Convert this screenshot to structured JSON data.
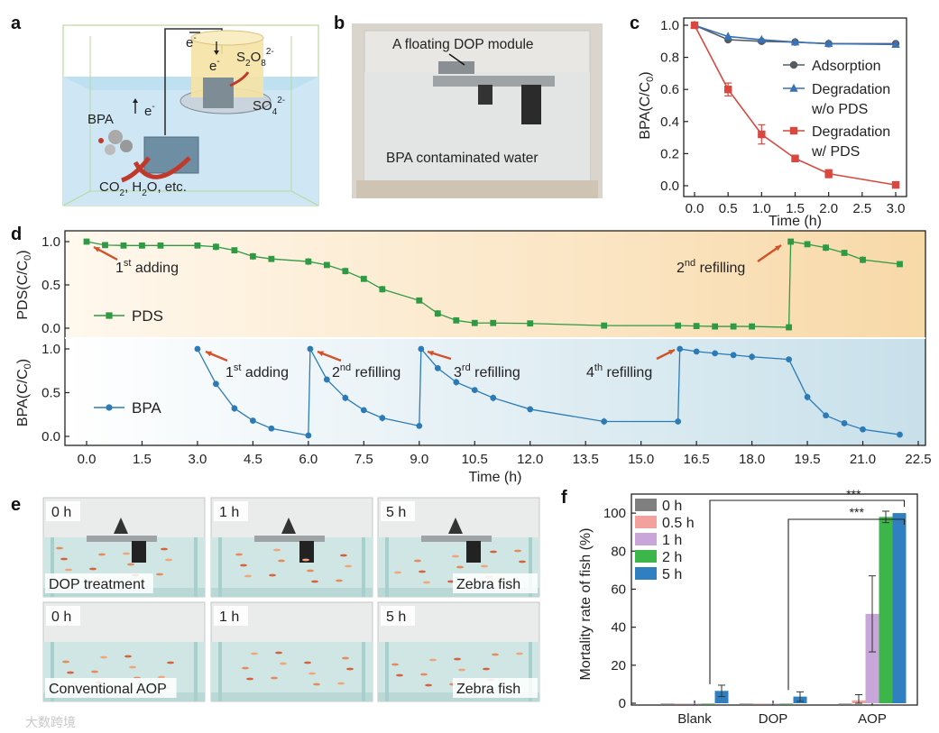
{
  "panels": {
    "a": {
      "letter": "a",
      "labels": {
        "electron1": "e",
        "electron1_sup": "-",
        "electron2": "e",
        "electron2_sup": "-",
        "electron3": "e",
        "electron3_sup": "-",
        "persulfate": "S",
        "persulfate_sub": "2",
        "persulfate_o": "O",
        "persulfate_sub2": "8",
        "persulfate_sup": "2-",
        "sulfate": "SO",
        "sulfate_sub": "4",
        "sulfate_sup": "2-",
        "bpa": "BPA",
        "products_co": "CO",
        "products_co_sub": "2",
        "products_h": ", H",
        "products_h_sub": "2",
        "products_rest": "O, etc."
      }
    },
    "b": {
      "letter": "b",
      "caption_top": "A floating DOP module",
      "caption_bottom": "BPA contaminated water"
    },
    "e": {
      "letter": "e",
      "photos": [
        {
          "time": "0 h",
          "caption": "DOP treatment"
        },
        {
          "time": "1 h",
          "caption": ""
        },
        {
          "time": "5 h",
          "caption": "Zebra fish"
        },
        {
          "time": "0 h",
          "caption": "Conventional AOP"
        },
        {
          "time": "1 h",
          "caption": ""
        },
        {
          "time": "5 h",
          "caption": "Zebra fish"
        }
      ]
    },
    "watermark": "大数跨境"
  },
  "chart_data": [
    {
      "panel": "c",
      "type": "line",
      "xlabel": "Time (h)",
      "ylabel": "BPA(C/C0)",
      "xlim": [
        0,
        3
      ],
      "ylim": [
        0,
        1
      ],
      "xticks": [
        "0.0",
        "0.5",
        "1.0",
        "1.5",
        "2.0",
        "2.5",
        "3.0"
      ],
      "yticks": [
        "0.0",
        "0.2",
        "0.4",
        "0.6",
        "0.8",
        "1.0"
      ],
      "legend_position": "right",
      "series": [
        {
          "name": "Adsorption",
          "marker": "circle",
          "color": "#555a63",
          "x": [
            0,
            0.5,
            1.0,
            1.5,
            2.0,
            3.0
          ],
          "y": [
            1.0,
            0.91,
            0.9,
            0.895,
            0.885,
            0.885
          ]
        },
        {
          "name": "Degradation w/o PDS",
          "marker": "triangle",
          "color": "#3a72b5",
          "x": [
            0,
            0.5,
            1.0,
            1.5,
            2.0,
            3.0
          ],
          "y": [
            1.0,
            0.93,
            0.91,
            0.895,
            0.885,
            0.88
          ]
        },
        {
          "name": "Degradation w/ PDS",
          "marker": "square",
          "color": "#d9473f",
          "x": [
            0,
            0.5,
            1.0,
            1.5,
            2.0,
            3.0
          ],
          "y": [
            1.0,
            0.6,
            0.32,
            0.17,
            0.075,
            0.005
          ],
          "err": [
            0,
            0.04,
            0.06,
            0.02,
            0.025,
            0
          ]
        }
      ]
    },
    {
      "panel": "d",
      "type": "line",
      "xlabel": "Time (h)",
      "xlim": [
        0,
        22.5
      ],
      "xticks": [
        "0.0",
        "1.5",
        "3.0",
        "4.5",
        "6.0",
        "7.5",
        "9.0",
        "10.5",
        "12.0",
        "13.5",
        "15.0",
        "16.5",
        "18.0",
        "19.5",
        "21.0",
        "22.5"
      ],
      "top": {
        "ylabel": "PDS(C/C0)",
        "ylim": [
          0,
          1
        ],
        "yticks": [
          "0.0",
          "0.5",
          "1.0"
        ],
        "series_name": "PDS",
        "color": "#2f9a44",
        "x": [
          0,
          0.5,
          1,
          1.5,
          2,
          3,
          3.5,
          4,
          4.5,
          5,
          6,
          6.5,
          7,
          7.5,
          8,
          9,
          9.5,
          10,
          10.5,
          11,
          12,
          14,
          16,
          16.5,
          17,
          17.5,
          18,
          19,
          19.05,
          19.5,
          20,
          20.5,
          21,
          22
        ],
        "y": [
          1.0,
          0.96,
          0.955,
          0.955,
          0.955,
          0.955,
          0.94,
          0.9,
          0.83,
          0.8,
          0.77,
          0.73,
          0.66,
          0.57,
          0.45,
          0.32,
          0.17,
          0.09,
          0.06,
          0.06,
          0.055,
          0.03,
          0.03,
          0.025,
          0.02,
          0.02,
          0.02,
          0.01,
          1.0,
          0.97,
          0.93,
          0.87,
          0.79,
          0.74
        ],
        "annotations": [
          {
            "text": "1",
            "sup": "st",
            "rest": " adding"
          },
          {
            "text": "2",
            "sup": "nd",
            "rest": " refilling"
          }
        ]
      },
      "bottom": {
        "ylabel": "BPA(C/C0)",
        "ylim": [
          0,
          1
        ],
        "yticks": [
          "0.0",
          "0.5",
          "1.0"
        ],
        "series_name": "BPA",
        "color": "#2c7bb6",
        "x": [
          3,
          3.5,
          4,
          4.5,
          5,
          6,
          6.05,
          6.5,
          7,
          7.5,
          8,
          9,
          9.05,
          9.5,
          10,
          10.5,
          11,
          12,
          14,
          16,
          16.05,
          16.5,
          17,
          17.5,
          18,
          19,
          19.5,
          20,
          20.5,
          21,
          22
        ],
        "y": [
          1.0,
          0.6,
          0.32,
          0.18,
          0.09,
          0.01,
          1.0,
          0.65,
          0.44,
          0.3,
          0.21,
          0.12,
          1.0,
          0.78,
          0.62,
          0.53,
          0.44,
          0.31,
          0.17,
          0.17,
          1.0,
          0.97,
          0.95,
          0.93,
          0.91,
          0.88,
          0.45,
          0.24,
          0.15,
          0.08,
          0.02
        ],
        "annotations": [
          {
            "text": "1",
            "sup": "st",
            "rest": " adding"
          },
          {
            "text": "2",
            "sup": "nd",
            "rest": " refilling"
          },
          {
            "text": "3",
            "sup": "rd",
            "rest": " refilling"
          },
          {
            "text": "4",
            "sup": "th",
            "rest": " refilling"
          }
        ]
      }
    },
    {
      "panel": "f",
      "type": "bar",
      "ylabel": "Mortality rate of fish (%)",
      "ylim": [
        0,
        110
      ],
      "yticks": [
        "0",
        "20",
        "40",
        "60",
        "80",
        "100"
      ],
      "categories": [
        "Blank",
        "DOP",
        "AOP"
      ],
      "legend_position": "top-left",
      "significance": [
        "***",
        "***"
      ],
      "series": [
        {
          "name": "0 h",
          "color": "#7f7f7f",
          "values": [
            0,
            0,
            0
          ],
          "err": [
            0,
            0,
            0
          ]
        },
        {
          "name": "0.5 h",
          "color": "#f2a19d",
          "values": [
            0,
            0,
            1.5
          ],
          "err": [
            0,
            0,
            3
          ]
        },
        {
          "name": "1 h",
          "color": "#c9a6d9",
          "values": [
            0,
            0,
            47
          ],
          "err": [
            0,
            0,
            20
          ]
        },
        {
          "name": "2 h",
          "color": "#3cb54a",
          "values": [
            0,
            0,
            98
          ],
          "err": [
            0,
            0,
            3
          ]
        },
        {
          "name": "5 h",
          "color": "#2f7fc1",
          "values": [
            6.5,
            3.5,
            100
          ],
          "err": [
            3,
            2.5,
            0
          ]
        }
      ]
    }
  ]
}
